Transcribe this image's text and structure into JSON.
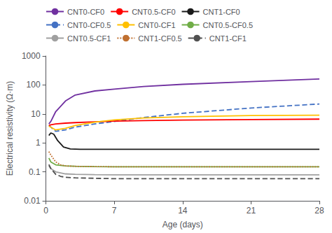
{
  "chart_data": {
    "type": "line",
    "xlabel": "Age (days)",
    "ylabel": "Electrical resistivity (Ω·m)",
    "xlim": [
      0,
      28
    ],
    "xticks": [
      0,
      7,
      14,
      21,
      28
    ],
    "ylim": [
      0.01,
      1000
    ],
    "yticks": [
      0.01,
      0.1,
      1,
      10,
      100,
      1000
    ],
    "log": "y",
    "grid": false,
    "legend": "upper left",
    "legend_order": [
      "CNT0-CF0",
      "CNT0.5-CF0",
      "CNT1-CF0",
      "CNT0-CF0.5",
      "CNT0-CF1",
      "CNT0.5-CF0.5",
      "CNT0.5-CF1",
      "CNT1-CF0.5",
      "CNT1-CF1"
    ],
    "series": [
      {
        "name": "CNT0-CF0",
        "color": "#7030a0",
        "line_style": "solid",
        "x": [
          0.3,
          0.5,
          1.0,
          2.0,
          3.0,
          5.0,
          7.0,
          10.0,
          14.0,
          21.0,
          28.0
        ],
        "values": [
          4.5,
          5.5,
          12.0,
          28.0,
          45.0,
          62.0,
          72.0,
          88.0,
          105.0,
          130.0,
          160.0
        ]
      },
      {
        "name": "CNT0-CF0.5",
        "color": "#4472c4",
        "line_style": "dashed",
        "x": [
          0.3,
          0.5,
          1.0,
          2.0,
          3.0,
          5.0,
          7.0,
          10.0,
          14.0,
          21.0,
          28.0
        ],
        "values": [
          4.0,
          3.5,
          2.5,
          2.8,
          3.5,
          4.5,
          5.5,
          7.5,
          10.5,
          16.0,
          22.0
        ]
      },
      {
        "name": "CNT0.5-CF0",
        "color": "#ff0000",
        "line_style": "solid",
        "x": [
          0.3,
          0.5,
          1.0,
          2.0,
          3.0,
          5.0,
          7.0,
          10.0,
          14.0,
          21.0,
          28.0
        ],
        "values": [
          4.0,
          4.2,
          4.5,
          4.8,
          5.0,
          5.3,
          5.6,
          5.9,
          6.1,
          6.4,
          6.6
        ]
      },
      {
        "name": "CNT0-CF1",
        "color": "#ffc000",
        "line_style": "solid",
        "x": [
          0.3,
          0.5,
          1.0,
          2.0,
          3.0,
          5.0,
          7.0,
          10.0,
          14.0,
          21.0,
          28.0
        ],
        "values": [
          3.8,
          3.5,
          2.8,
          3.2,
          4.0,
          5.2,
          6.2,
          7.2,
          8.0,
          8.8,
          9.0
        ]
      },
      {
        "name": "CNT1-CF0",
        "color": "#1a1a1a",
        "line_style": "solid",
        "x": [
          0.3,
          0.5,
          0.8,
          1.2,
          1.8,
          2.5,
          3.5,
          5.0,
          7.0,
          10.0,
          14.0,
          21.0,
          28.0
        ],
        "values": [
          1.8,
          2.2,
          2.0,
          1.2,
          0.72,
          0.62,
          0.6,
          0.6,
          0.6,
          0.6,
          0.6,
          0.6,
          0.6
        ]
      },
      {
        "name": "CNT0.5-CF0.5",
        "color": "#70ad47",
        "line_style": "solid",
        "x": [
          0.3,
          0.5,
          1.0,
          2.0,
          3.0,
          5.0,
          7.0,
          10.0,
          14.0,
          21.0,
          28.0
        ],
        "values": [
          0.3,
          0.22,
          0.175,
          0.16,
          0.155,
          0.152,
          0.15,
          0.15,
          0.15,
          0.15,
          0.15
        ]
      },
      {
        "name": "CNT0.5-CF1",
        "color": "#a0a0a0",
        "line_style": "solid",
        "x": [
          0.3,
          0.5,
          1.0,
          2.0,
          3.0,
          5.0,
          7.0,
          10.0,
          14.0,
          21.0,
          28.0
        ],
        "values": [
          0.16,
          0.13,
          0.1,
          0.085,
          0.082,
          0.08,
          0.079,
          0.079,
          0.079,
          0.079,
          0.079
        ]
      },
      {
        "name": "CNT1-CF0.5",
        "color": "#c07030",
        "line_style": "dotted",
        "x": [
          0.3,
          0.5,
          1.0,
          1.5,
          2.0,
          3.0,
          5.0,
          7.0,
          10.0,
          14.0,
          21.0,
          28.0
        ],
        "values": [
          0.5,
          0.38,
          0.22,
          0.175,
          0.16,
          0.155,
          0.152,
          0.15,
          0.15,
          0.15,
          0.15,
          0.15
        ]
      },
      {
        "name": "CNT1-CF1",
        "color": "#505050",
        "line_style": "dashed",
        "x": [
          0.3,
          0.5,
          1.0,
          1.5,
          2.0,
          3.0,
          5.0,
          7.0,
          10.0,
          14.0,
          21.0,
          28.0
        ],
        "values": [
          0.18,
          0.13,
          0.082,
          0.07,
          0.065,
          0.062,
          0.06,
          0.058,
          0.058,
          0.058,
          0.058,
          0.058
        ]
      }
    ]
  }
}
